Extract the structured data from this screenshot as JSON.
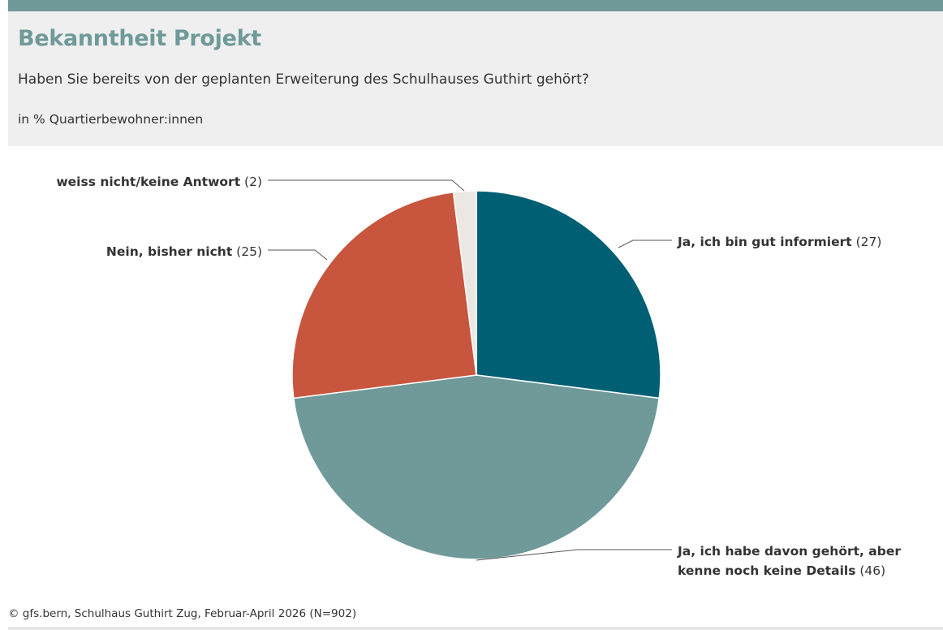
{
  "header": {
    "title": "Bekanntheit Projekt",
    "subtitle": "Haben Sie bereits von der geplanten Erweiterung des Schulhauses Guthirt gehört?",
    "unit": "in % Quartierbewohner:innen"
  },
  "footer": {
    "source": "© gfs.bern, Schulhaus Guthirt Zug, Februar-April 2026 (N=902)"
  },
  "chart_data": {
    "type": "pie",
    "title": "Bekanntheit Projekt",
    "slices": [
      {
        "label": "Ja, ich bin gut informiert",
        "value": 27,
        "color": "#005f73"
      },
      {
        "label": "Ja, ich habe davon gehört, aber kenne noch keine Details",
        "value": 46,
        "color": "#6f9a99"
      },
      {
        "label": "Nein, bisher nicht",
        "value": 25,
        "color": "#c8553d"
      },
      {
        "label": "weiss nicht/keine Antwort",
        "value": 2,
        "color": "#ece7e2"
      }
    ],
    "labels": [
      {
        "lines": [
          "Ja, ich bin gut informiert"
        ],
        "value_text": "(27)"
      },
      {
        "lines": [
          "Ja, ich habe davon gehört, aber",
          "kenne noch keine Details"
        ],
        "value_text": "(46)"
      },
      {
        "lines": [
          "Nein, bisher nicht"
        ],
        "value_text": "(25)"
      },
      {
        "lines": [
          "weiss nicht/keine Antwort"
        ],
        "value_text": "(2)"
      }
    ]
  }
}
